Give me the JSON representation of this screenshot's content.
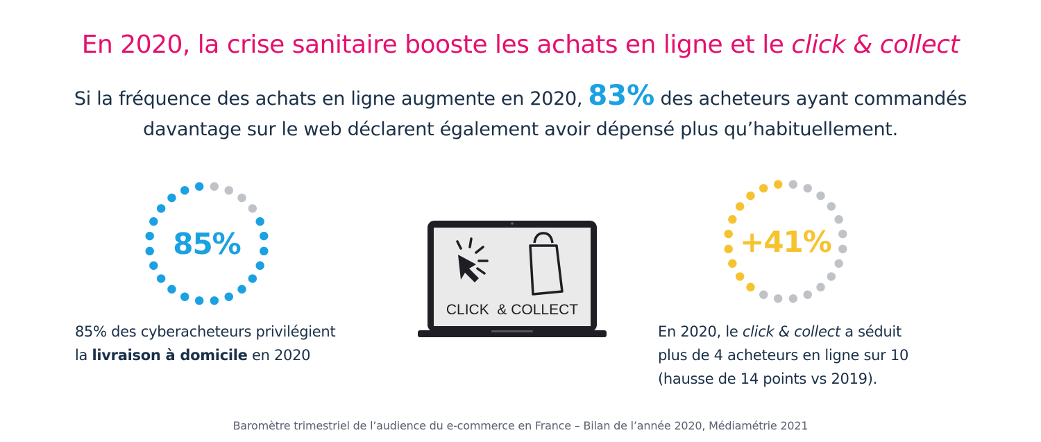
{
  "title": {
    "main": "En 2020, la crise sanitaire booste les achats en ligne et le ",
    "italic": "click & collect"
  },
  "subtitle": {
    "line1_a": "Si la fréquence des achats en ligne augmente en 2020, ",
    "highlight": "83%",
    "line1_b": " des acheteurs ayant commandés",
    "line2": "davantage sur le web déclarent également avoir dépensé plus qu’habituellement."
  },
  "stat_left": {
    "value": "85%",
    "percent": 85,
    "color": "#1ba1e2",
    "caption_a": "85% des cyberacheteurs privilégient",
    "caption_b_pre": "la ",
    "caption_b_bold": "livraison à domicile",
    "caption_b_post": " en 2020"
  },
  "stat_right": {
    "value": "+41%",
    "percent": 41,
    "color": "#f6c330",
    "caption_a_pre": "En 2020, le ",
    "caption_a_italic": "click & collect",
    "caption_a_post": " a séduit",
    "caption_b": "plus de 4 acheteurs en ligne sur 10",
    "caption_c": "(hausse de 14 points vs 2019)."
  },
  "laptop": {
    "screen_label": "CLICK  & COLLECT",
    "icons": [
      "cursor-click-icon",
      "shopping-bag-icon"
    ]
  },
  "colors": {
    "title": "#e5106e",
    "text": "#1b3048",
    "accent_blue": "#1ba1e2",
    "accent_yellow": "#f6c330",
    "dot_gray": "#bfc3c8"
  },
  "source": "Baromètre trimestriel de l’audience du e-commerce en France – Bilan de l’année 2020, Médiamétrie 2021"
}
